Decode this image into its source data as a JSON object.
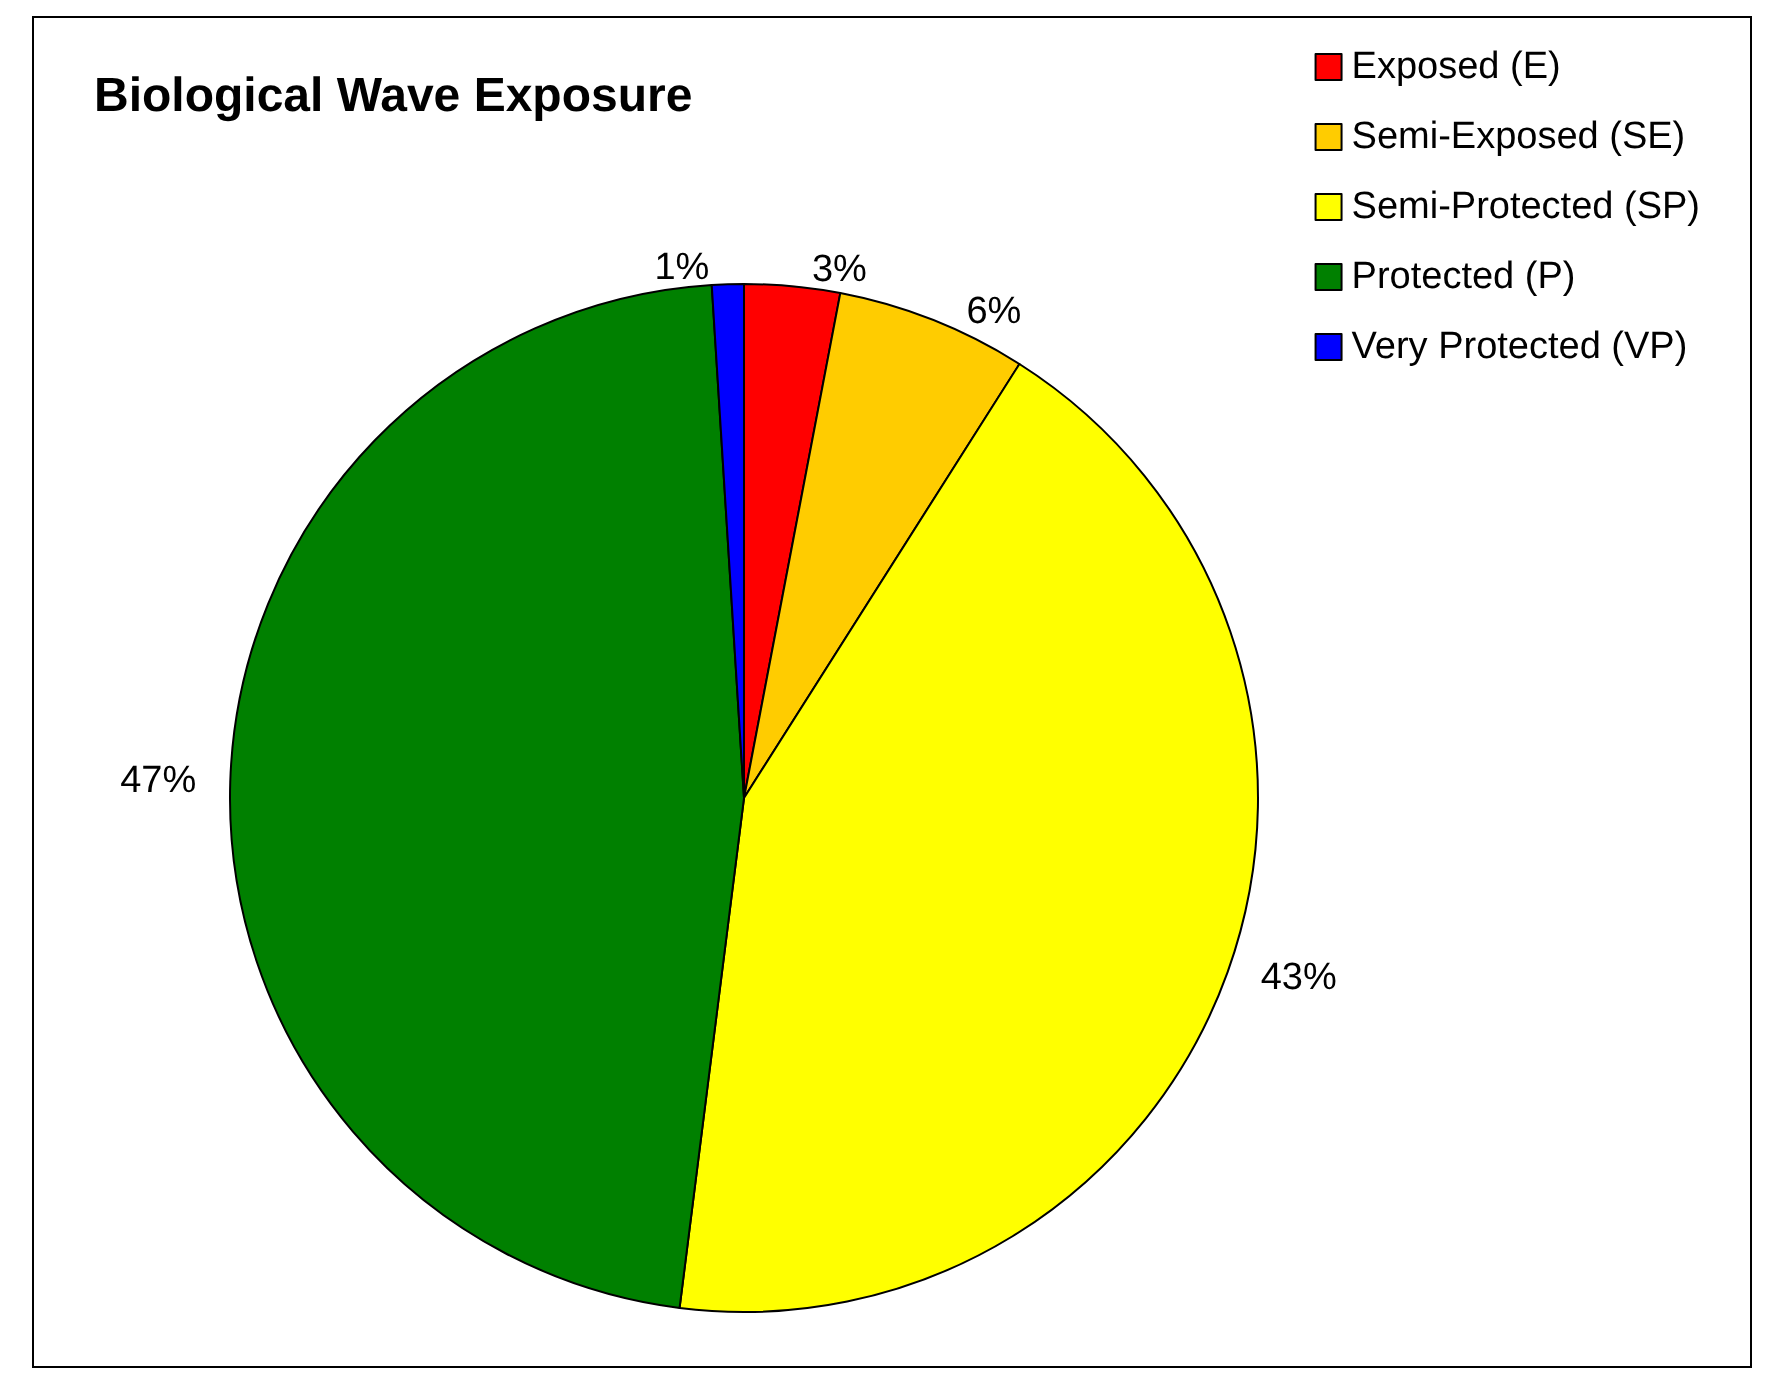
{
  "chart_data": {
    "type": "pie",
    "title": "Biological Wave Exposure",
    "categories": [
      "Exposed (E)",
      "Semi-Exposed (SE)",
      "Semi-Protected (SP)",
      "Protected (P)",
      "Very Protected (VP)"
    ],
    "values": [
      3,
      6,
      43,
      47,
      1
    ],
    "colors": [
      "#ff0000",
      "#ffcc00",
      "#ffff00",
      "#008000",
      "#0000ff"
    ],
    "value_labels": [
      "3%",
      "6%",
      "43%",
      "47%",
      "1%"
    ],
    "legend": "top right"
  }
}
